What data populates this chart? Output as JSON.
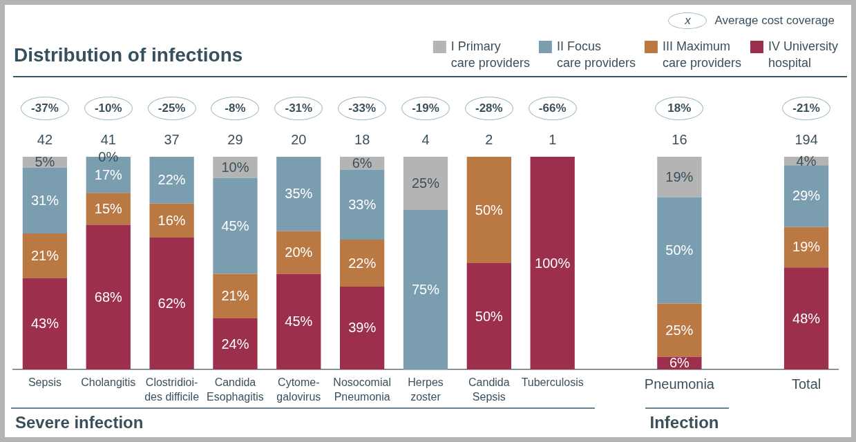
{
  "chart_data": {
    "type": "bar",
    "stacked": true,
    "title": "Distribution of infections",
    "categories": [
      "Sepsis",
      "Cholangitis",
      "Clostridioi-\ndes difficile",
      "Candida\nEsophagitis",
      "Cytome-\ngalovirus",
      "Nosocomial\nPneumonia",
      "Herpes\nzoster",
      "Candida\nSepsis",
      "Tuberculosis",
      null,
      "Pneumonia",
      null,
      "Total"
    ],
    "series": [
      {
        "name": "IV University\nhospital",
        "color": "#9b2f4c",
        "values": [
          43,
          68,
          62,
          24,
          45,
          39,
          null,
          50,
          100,
          null,
          6,
          null,
          48
        ],
        "value_labels": [
          "43%",
          "68%",
          "62%",
          "24%",
          "45%",
          "39%",
          null,
          "50%",
          "100%",
          null,
          "6%",
          null,
          "48%"
        ]
      },
      {
        "name": "III Maximum\ncare providers",
        "color": "#ba7843",
        "values": [
          21,
          15,
          16,
          21,
          20,
          22,
          null,
          50,
          null,
          null,
          25,
          null,
          19
        ],
        "value_labels": [
          "21%",
          "15%",
          "16%",
          "21%",
          "20%",
          "22%",
          null,
          "50%",
          null,
          null,
          "25%",
          null,
          "19%"
        ]
      },
      {
        "name": "II Focus\ncare providers",
        "color": "#7b9db0",
        "values": [
          31,
          17,
          22,
          45,
          35,
          33,
          75,
          null,
          null,
          null,
          50,
          null,
          29
        ],
        "value_labels": [
          "31%",
          "17%",
          "22%",
          "45%",
          "35%",
          "33%",
          "75%",
          null,
          null,
          null,
          "50%",
          null,
          "29%"
        ]
      },
      {
        "name": "I Primary\ncare providers",
        "color": "#b4b4b4",
        "values": [
          5,
          0,
          null,
          10,
          null,
          6,
          25,
          null,
          null,
          null,
          19,
          null,
          4
        ],
        "value_labels": [
          "5%",
          "0%",
          null,
          "10%",
          null,
          "6%",
          "25%",
          null,
          null,
          null,
          "19%",
          null,
          "4%"
        ]
      }
    ],
    "ylim": [
      0,
      100
    ],
    "tick_labels": "x",
    "legend": "top right",
    "annotations": [
      "x",
      "Average cost coverage",
      "-37%",
      "-10%",
      "-25%",
      "-8%",
      "-31%",
      "-33%",
      "-19%",
      "-28%",
      "-66%",
      "18%",
      "-21%",
      "42",
      "41",
      "37",
      "29",
      "20",
      "18",
      "4",
      "2",
      "1",
      "16",
      "194",
      "Severe infection",
      "Infection"
    ]
  }
}
